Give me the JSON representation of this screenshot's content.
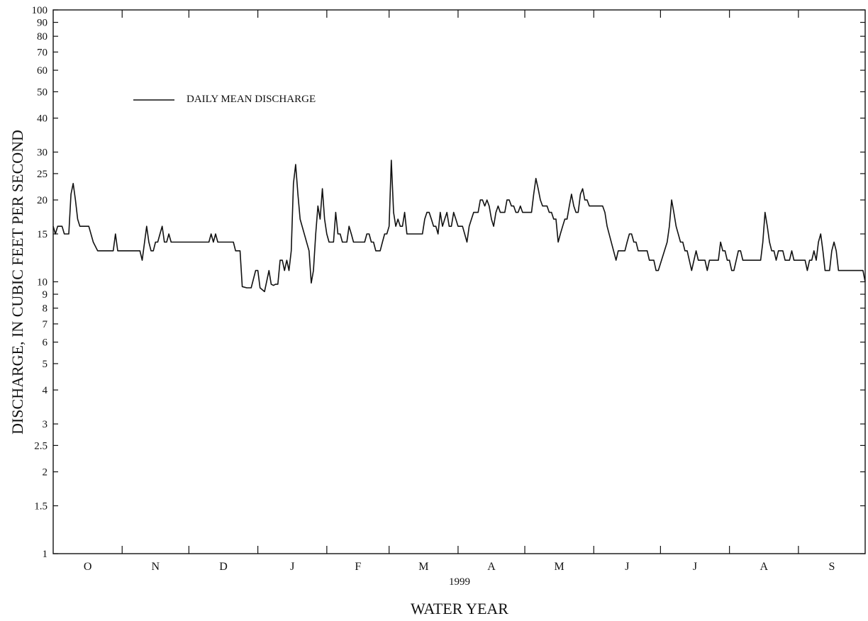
{
  "chart_data": {
    "type": "line",
    "title": "",
    "xlabel": "WATER YEAR",
    "ylabel": "DISCHARGE, IN CUBIC FEET PER SECOND",
    "year_label": "1999",
    "y_scale": "log",
    "ylim": [
      1,
      100
    ],
    "xlim": [
      0,
      365
    ],
    "grid": false,
    "legend_placement": "top-left",
    "y_ticks": [
      1,
      1.5,
      2,
      2.5,
      3,
      4,
      5,
      6,
      7,
      8,
      9,
      10,
      15,
      20,
      25,
      30,
      40,
      50,
      60,
      70,
      80,
      90,
      100
    ],
    "y_tick_labels": [
      "1",
      "1.5",
      "2",
      "2.5",
      "3",
      "4",
      "5",
      "6",
      "7",
      "8",
      "9",
      "10",
      "15",
      "20",
      "25",
      "30",
      "40",
      "50",
      "60",
      "70",
      "80",
      "90",
      "100"
    ],
    "month_boundaries": [
      0,
      31,
      61,
      92,
      123,
      151,
      182,
      212,
      243,
      273,
      304,
      335,
      365
    ],
    "month_labels": [
      "O",
      "N",
      "D",
      "J",
      "F",
      "M",
      "A",
      "M",
      "J",
      "J",
      "A",
      "S"
    ],
    "series": [
      {
        "name": "DAILY MEAN DISCHARGE",
        "color": "#111111",
        "points": [
          [
            0,
            16
          ],
          [
            1,
            15
          ],
          [
            2,
            16
          ],
          [
            4,
            16
          ],
          [
            5,
            15
          ],
          [
            7,
            15
          ],
          [
            8,
            21
          ],
          [
            9,
            23
          ],
          [
            10,
            20
          ],
          [
            11,
            17
          ],
          [
            12,
            16
          ],
          [
            14,
            16
          ],
          [
            16,
            16
          ],
          [
            18,
            14
          ],
          [
            20,
            13
          ],
          [
            27,
            13
          ],
          [
            28,
            15
          ],
          [
            29,
            13
          ],
          [
            39,
            13
          ],
          [
            40,
            12
          ],
          [
            42,
            16
          ],
          [
            43,
            14
          ],
          [
            44,
            13
          ],
          [
            45,
            13
          ],
          [
            46,
            14
          ],
          [
            47,
            14
          ],
          [
            48,
            15
          ],
          [
            49,
            16
          ],
          [
            50,
            14
          ],
          [
            51,
            14
          ],
          [
            52,
            15
          ],
          [
            53,
            14
          ],
          [
            70,
            14
          ],
          [
            71,
            15
          ],
          [
            72,
            14
          ],
          [
            73,
            15
          ],
          [
            74,
            14
          ],
          [
            81,
            14
          ],
          [
            82,
            13
          ],
          [
            84,
            13
          ],
          [
            85,
            9.6
          ],
          [
            87,
            9.5
          ],
          [
            89,
            9.5
          ],
          [
            91,
            11
          ],
          [
            92,
            11
          ],
          [
            93,
            9.5
          ],
          [
            95,
            9.2
          ],
          [
            97,
            11
          ],
          [
            98,
            9.8
          ],
          [
            99,
            9.7
          ],
          [
            100,
            9.8
          ],
          [
            101,
            9.8
          ],
          [
            102,
            12
          ],
          [
            103,
            12
          ],
          [
            104,
            11
          ],
          [
            105,
            12
          ],
          [
            106,
            11
          ],
          [
            107,
            13
          ],
          [
            108,
            23
          ],
          [
            109,
            27
          ],
          [
            110,
            21
          ],
          [
            111,
            17
          ],
          [
            115,
            13
          ],
          [
            116,
            9.9
          ],
          [
            117,
            11
          ],
          [
            118,
            15
          ],
          [
            119,
            19
          ],
          [
            120,
            17
          ],
          [
            121,
            22
          ],
          [
            122,
            17
          ],
          [
            123,
            15
          ],
          [
            124,
            14
          ],
          [
            126,
            14
          ],
          [
            127,
            18
          ],
          [
            128,
            15
          ],
          [
            129,
            15
          ],
          [
            130,
            14
          ],
          [
            132,
            14
          ],
          [
            133,
            16
          ],
          [
            134,
            15
          ],
          [
            135,
            14
          ],
          [
            140,
            14
          ],
          [
            141,
            15
          ],
          [
            142,
            15
          ],
          [
            143,
            14
          ],
          [
            144,
            14
          ],
          [
            145,
            13
          ],
          [
            147,
            13
          ],
          [
            148,
            14
          ],
          [
            149,
            15
          ],
          [
            150,
            15
          ],
          [
            151,
            16
          ],
          [
            152,
            28
          ],
          [
            153,
            18
          ],
          [
            154,
            16
          ],
          [
            155,
            17
          ],
          [
            156,
            16
          ],
          [
            157,
            16
          ],
          [
            158,
            18
          ],
          [
            159,
            15
          ],
          [
            166,
            15
          ],
          [
            167,
            17
          ],
          [
            168,
            18
          ],
          [
            169,
            18
          ],
          [
            170,
            17
          ],
          [
            171,
            16
          ],
          [
            172,
            16
          ],
          [
            173,
            15
          ],
          [
            174,
            18
          ],
          [
            175,
            16
          ],
          [
            176,
            17
          ],
          [
            177,
            18
          ],
          [
            178,
            16
          ],
          [
            179,
            16
          ],
          [
            180,
            18
          ],
          [
            181,
            17
          ],
          [
            182,
            16
          ],
          [
            184,
            16
          ],
          [
            186,
            14
          ],
          [
            187,
            16
          ],
          [
            188,
            17
          ],
          [
            189,
            18
          ],
          [
            191,
            18
          ],
          [
            192,
            20
          ],
          [
            193,
            20
          ],
          [
            194,
            19
          ],
          [
            195,
            20
          ],
          [
            196,
            19
          ],
          [
            197,
            17
          ],
          [
            198,
            16
          ],
          [
            199,
            18
          ],
          [
            200,
            19
          ],
          [
            201,
            18
          ],
          [
            203,
            18
          ],
          [
            204,
            20
          ],
          [
            205,
            20
          ],
          [
            206,
            19
          ],
          [
            207,
            19
          ],
          [
            208,
            18
          ],
          [
            209,
            18
          ],
          [
            210,
            19
          ],
          [
            211,
            18
          ],
          [
            215,
            18
          ],
          [
            216,
            21
          ],
          [
            217,
            24
          ],
          [
            218,
            22
          ],
          [
            219,
            20
          ],
          [
            220,
            19
          ],
          [
            222,
            19
          ],
          [
            223,
            18
          ],
          [
            224,
            18
          ],
          [
            225,
            17
          ],
          [
            226,
            17
          ],
          [
            227,
            14
          ],
          [
            228,
            15
          ],
          [
            229,
            16
          ],
          [
            230,
            17
          ],
          [
            231,
            17
          ],
          [
            232,
            19
          ],
          [
            233,
            21
          ],
          [
            234,
            19
          ],
          [
            235,
            18
          ],
          [
            236,
            18
          ],
          [
            237,
            21
          ],
          [
            238,
            22
          ],
          [
            239,
            20
          ],
          [
            240,
            20
          ],
          [
            241,
            19
          ],
          [
            247,
            19
          ],
          [
            248,
            18
          ],
          [
            249,
            16
          ],
          [
            253,
            12
          ],
          [
            254,
            13
          ],
          [
            257,
            13
          ],
          [
            258,
            14
          ],
          [
            259,
            15
          ],
          [
            260,
            15
          ],
          [
            261,
            14
          ],
          [
            262,
            14
          ],
          [
            263,
            13
          ],
          [
            267,
            13
          ],
          [
            268,
            12
          ],
          [
            270,
            12
          ],
          [
            271,
            11
          ],
          [
            272,
            11
          ],
          [
            276,
            14
          ],
          [
            277,
            16
          ],
          [
            278,
            20
          ],
          [
            279,
            18
          ],
          [
            280,
            16
          ],
          [
            282,
            14
          ],
          [
            283,
            14
          ],
          [
            284,
            13
          ],
          [
            285,
            13
          ],
          [
            287,
            11
          ],
          [
            289,
            13
          ],
          [
            290,
            12
          ],
          [
            293,
            12
          ],
          [
            294,
            11
          ],
          [
            295,
            12
          ],
          [
            299,
            12
          ],
          [
            300,
            14
          ],
          [
            301,
            13
          ],
          [
            302,
            13
          ],
          [
            303,
            12
          ],
          [
            304,
            12
          ],
          [
            305,
            11
          ],
          [
            306,
            11
          ],
          [
            308,
            13
          ],
          [
            309,
            13
          ],
          [
            310,
            12
          ],
          [
            318,
            12
          ],
          [
            319,
            14
          ],
          [
            320,
            18
          ],
          [
            321,
            16
          ],
          [
            322,
            14
          ],
          [
            323,
            13
          ],
          [
            324,
            13
          ],
          [
            325,
            12
          ],
          [
            326,
            13
          ],
          [
            328,
            13
          ],
          [
            329,
            12
          ],
          [
            331,
            12
          ],
          [
            332,
            13
          ],
          [
            333,
            12
          ],
          [
            338,
            12
          ],
          [
            339,
            11
          ],
          [
            340,
            12
          ],
          [
            341,
            12
          ],
          [
            342,
            13
          ],
          [
            343,
            12
          ],
          [
            344,
            14
          ],
          [
            345,
            15
          ],
          [
            346,
            13
          ],
          [
            347,
            11
          ],
          [
            349,
            11
          ],
          [
            350,
            13
          ],
          [
            351,
            14
          ],
          [
            352,
            13
          ],
          [
            353,
            11
          ],
          [
            364,
            11
          ],
          [
            365,
            10
          ]
        ]
      }
    ]
  }
}
